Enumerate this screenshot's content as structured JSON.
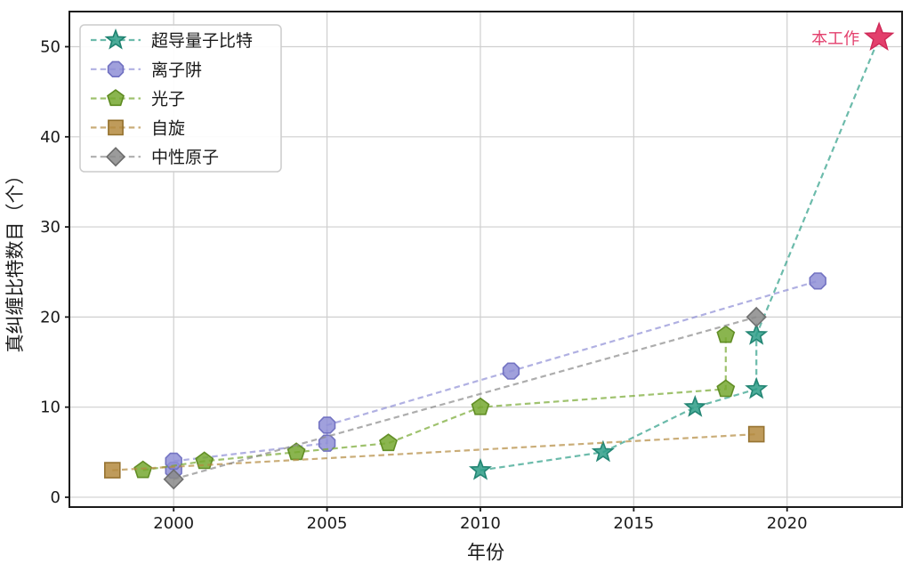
{
  "chart_data": {
    "type": "line",
    "title": "",
    "xlabel": "年份",
    "ylabel": "真纠缠比特数目（个）",
    "xlim": [
      1996.6,
      2023.75
    ],
    "ylim": [
      -1.09,
      53.9
    ],
    "xticks": [
      2000,
      2005,
      2010,
      2015,
      2020
    ],
    "yticks": [
      0,
      10,
      20,
      30,
      40,
      50
    ],
    "grid": true,
    "grid_color": "#cfcfcf",
    "frame_color": "#1a1a1a",
    "text_color": "#1a1a1a",
    "line_style": "dashed",
    "legend_position": "upper-left",
    "series": [
      {
        "id": "superconducting",
        "name": "超导量子比特",
        "marker": "star",
        "marker_size": 11.4,
        "color": "#2d9e87",
        "edge": "#1e8270",
        "points": [
          [
            2010,
            3
          ],
          [
            2014,
            5
          ],
          [
            2017,
            10
          ],
          [
            2019,
            12
          ],
          [
            2019,
            18
          ],
          [
            2023,
            51
          ]
        ],
        "highlight_last": true
      },
      {
        "id": "ion-trap",
        "name": "离子阱",
        "marker": "octagon",
        "marker_size": 9.6,
        "color": "#8f8fd6",
        "edge": "#6f6fc0",
        "points": [
          [
            2000,
            3
          ],
          [
            2000,
            4
          ],
          [
            2005,
            6
          ],
          [
            2005,
            8
          ],
          [
            2011,
            14
          ],
          [
            2021,
            24
          ]
        ]
      },
      {
        "id": "photon",
        "name": "光子",
        "marker": "pentagon",
        "marker_size": 10,
        "color": "#76a830",
        "edge": "#5d8a20",
        "points": [
          [
            1999,
            3
          ],
          [
            2001,
            4
          ],
          [
            2004,
            5
          ],
          [
            2007,
            6
          ],
          [
            2010,
            10
          ],
          [
            2018,
            12
          ],
          [
            2018,
            18
          ]
        ]
      },
      {
        "id": "spin",
        "name": "自旋",
        "marker": "square",
        "marker_size": 8.5,
        "color": "#b48a3e",
        "edge": "#93702c",
        "points": [
          [
            1998,
            3
          ],
          [
            2019,
            7
          ]
        ]
      },
      {
        "id": "neutral-atom",
        "name": "中性原子",
        "marker": "diamond",
        "marker_size": 10.5,
        "color": "#8a8a8a",
        "edge": "#6b6b6b",
        "points": [
          [
            2000,
            2
          ],
          [
            2019,
            20
          ]
        ]
      }
    ],
    "highlight": {
      "label": "本工作",
      "x": 2023,
      "y": 51,
      "marker": "star",
      "marker_size": 16,
      "color": "#e33f6c",
      "edge": "#cf2a58"
    }
  }
}
